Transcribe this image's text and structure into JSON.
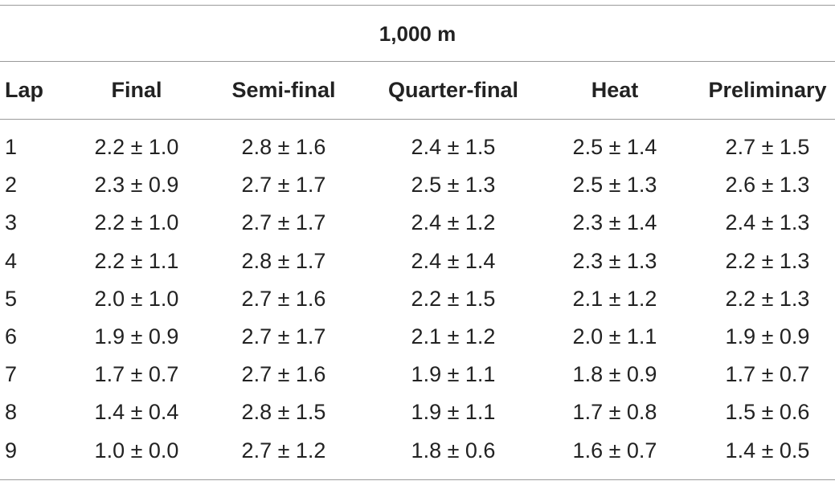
{
  "table": {
    "span_header": "1,000 m",
    "columns": [
      "Lap",
      "Final",
      "Semi-final",
      "Quarter-final",
      "Heat",
      "Preliminary"
    ],
    "rows": [
      [
        "1",
        "2.2 ± 1.0",
        "2.8 ± 1.6",
        "2.4 ± 1.5",
        "2.5 ± 1.4",
        "2.7 ± 1.5"
      ],
      [
        "2",
        "2.3 ± 0.9",
        "2.7 ± 1.7",
        "2.5 ± 1.3",
        "2.5 ± 1.3",
        "2.6 ± 1.3"
      ],
      [
        "3",
        "2.2 ± 1.0",
        "2.7 ± 1.7",
        "2.4 ± 1.2",
        "2.3 ± 1.4",
        "2.4 ± 1.3"
      ],
      [
        "4",
        "2.2 ± 1.1",
        "2.8 ± 1.7",
        "2.4 ± 1.4",
        "2.3 ± 1.3",
        "2.2 ± 1.3"
      ],
      [
        "5",
        "2.0 ± 1.0",
        "2.7 ± 1.6",
        "2.2 ± 1.5",
        "2.1 ± 1.2",
        "2.2 ± 1.3"
      ],
      [
        "6",
        "1.9 ± 0.9",
        "2.7 ± 1.7",
        "2.1 ± 1.2",
        "2.0 ± 1.1",
        "1.9 ± 0.9"
      ],
      [
        "7",
        "1.7 ± 0.7",
        "2.7 ± 1.6",
        "1.9 ± 1.1",
        "1.8 ± 0.9",
        "1.7 ± 0.7"
      ],
      [
        "8",
        "1.4 ± 0.4",
        "2.8 ± 1.5",
        "1.9 ± 1.1",
        "1.7 ± 0.8",
        "1.5 ± 0.6"
      ],
      [
        "9",
        "1.0 ± 0.0",
        "2.7 ± 1.2",
        "1.8 ± 0.6",
        "1.6 ± 0.7",
        "1.4 ± 0.5"
      ]
    ]
  }
}
